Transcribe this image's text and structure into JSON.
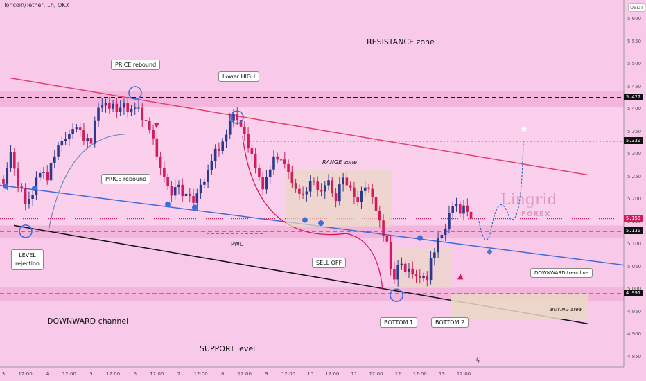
{
  "header": {
    "symbol": "Toncoin/Tether, 1h, OKX",
    "currency": "USDT"
  },
  "colors": {
    "background": "#f9c9e9",
    "band_fill": "#f3b2dc",
    "candle_up": "#2d3a8c",
    "candle_down": "#d11d5a",
    "downward_trendline": "#3f6ad8",
    "resistance_trendline": "#e0406e",
    "channel_bottom": "#111111",
    "buying_area_fill": "#ead7c4"
  },
  "logo": {
    "name": "Lingrid",
    "sub": "FOREX"
  },
  "annotations": {
    "resistance_zone": "RESISTANCE zone",
    "price_rebound_top": "PRICE rebound",
    "lower_high": "Lower HIGH",
    "price_rebound_mid": "PRICE rebound",
    "range_zone": "RANGE zone",
    "pwl": "PWL",
    "level_rejection_1": "LEVEL",
    "level_rejection_2": "rejection",
    "sell_off": "SELL OFF",
    "downward_channel": "DOWNWARD channel",
    "support_level": "SUPPORT level",
    "bottom_1": "BOTTOM 1",
    "bottom_2": "BOTTOM 2",
    "downward_trendline": "DOWNWARD trendline",
    "buying_area": "BUYING area"
  },
  "chart_data": {
    "type": "candlestick",
    "title": "Toncoin/Tether, 1h, OKX",
    "xlabel": "",
    "ylabel": "",
    "ylim": [
      4.82,
      5.62
    ],
    "y_ticks": [
      4.85,
      4.9,
      4.95,
      5.0,
      5.05,
      5.1,
      5.15,
      5.2,
      5.25,
      5.3,
      5.35,
      5.4,
      5.45,
      5.5,
      5.55,
      5.6
    ],
    "y_tick_labels": [
      "4.850",
      "4.900",
      "4.950",
      "5.000",
      "5.050",
      "5.100",
      "5.150",
      "5.200",
      "5.250",
      "5.300",
      "5.350",
      "5.400",
      "5.450",
      "5.500",
      "5.550",
      "5.600"
    ],
    "x_ticks": [
      "3",
      "12:00",
      "4",
      "12:00",
      "5",
      "12:00",
      "6",
      "12:00",
      "7",
      "12:00",
      "8",
      "12:00",
      "9",
      "12:00",
      "10",
      "12:00",
      "11",
      "12:00",
      "12",
      "12:00",
      "13",
      "12:00"
    ],
    "x_tick_index": [
      0,
      6,
      12,
      18,
      24,
      30,
      36,
      42,
      48,
      54,
      60,
      66,
      72,
      78,
      84,
      90,
      96,
      102,
      108,
      114,
      120,
      126
    ],
    "price_levels": [
      {
        "label": "5.427",
        "value": 5.427,
        "style": "dashed"
      },
      {
        "label": "5.330",
        "value": 5.33,
        "style": "dotted"
      },
      {
        "label": "5.158",
        "value": 5.158,
        "style": "current"
      },
      {
        "label": "5.130",
        "value": 5.13,
        "style": "dashed"
      },
      {
        "label": "4.991",
        "value": 4.991,
        "style": "dashed"
      }
    ],
    "zones": [
      {
        "name": "resistance",
        "from": 5.405,
        "to": 5.44
      },
      {
        "name": "mid_level",
        "from": 5.115,
        "to": 5.143
      },
      {
        "name": "support",
        "from": 4.975,
        "to": 5.005
      }
    ],
    "candles_close": [
      5.236,
      5.271,
      5.305,
      5.269,
      5.229,
      5.225,
      5.191,
      5.202,
      5.211,
      5.249,
      5.259,
      5.261,
      5.243,
      5.282,
      5.296,
      5.32,
      5.331,
      5.335,
      5.346,
      5.357,
      5.36,
      5.354,
      5.33,
      5.337,
      5.324,
      5.376,
      5.404,
      5.409,
      5.414,
      5.402,
      5.413,
      5.395,
      5.404,
      5.414,
      5.394,
      5.402,
      5.404,
      5.404,
      5.377,
      5.375,
      5.355,
      5.336,
      5.296,
      5.27,
      5.25,
      5.23,
      5.209,
      5.228,
      5.233,
      5.208,
      5.213,
      5.208,
      5.193,
      5.214,
      5.233,
      5.239,
      5.266,
      5.285,
      5.313,
      5.308,
      5.329,
      5.344,
      5.376,
      5.391,
      5.377,
      5.362,
      5.345,
      5.314,
      5.301,
      5.27,
      5.25,
      5.223,
      5.25,
      5.267,
      5.296,
      5.289,
      5.289,
      5.279,
      5.262,
      5.237,
      5.224,
      5.213,
      5.212,
      5.218,
      5.241,
      5.24,
      5.221,
      5.218,
      5.232,
      5.243,
      5.214,
      5.197,
      5.234,
      5.249,
      5.232,
      5.227,
      5.205,
      5.195,
      5.219,
      5.227,
      5.224,
      5.205,
      5.175,
      5.154,
      5.119,
      5.107,
      5.046,
      5.023,
      5.056,
      5.058,
      5.04,
      5.047,
      5.034,
      5.031,
      5.026,
      5.03,
      5.022,
      5.07,
      5.083,
      5.114,
      5.122,
      5.135,
      5.171,
      5.185,
      5.19,
      5.169,
      5.187,
      5.173,
      5.158
    ]
  }
}
